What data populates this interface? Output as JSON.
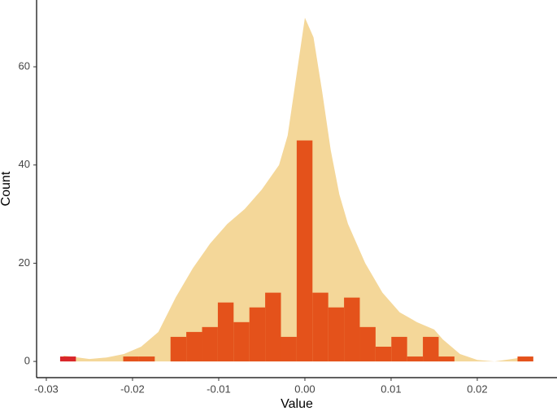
{
  "chart_data": {
    "type": "histogram",
    "x_label": "Value",
    "y_label": "Count",
    "bins": [
      -0.0284,
      -0.02657,
      -0.02474,
      -0.02291,
      -0.02108,
      -0.01925,
      -0.01742,
      -0.01559,
      -0.01376,
      -0.01193,
      -0.0101,
      -0.00827,
      -0.00644,
      -0.00461,
      -0.00278,
      -0.00095,
      0.00088,
      0.00271,
      0.00454,
      0.00637,
      0.0082,
      0.01003,
      0.01186,
      0.01369,
      0.01552,
      0.01735,
      0.01918,
      0.02101,
      0.02284,
      0.02467,
      0.0265
    ],
    "counts": [
      1,
      0,
      0,
      0,
      1,
      1,
      0,
      5,
      6,
      7,
      12,
      8,
      11,
      14,
      5,
      45,
      14,
      11,
      13,
      7,
      3,
      5,
      1,
      5,
      1,
      0,
      0,
      0,
      0,
      1
    ],
    "colors": [
      "#d9262a",
      "#e4521b",
      "#e4521b",
      "#e4521b",
      "#e4521b",
      "#e4521b",
      "#e4521b",
      "#e4521b",
      "#e4521b",
      "#e4521b",
      "#e4521b",
      "#e4521b",
      "#e4521b",
      "#e4521b",
      "#e4521b",
      "#e4521b",
      "#e4521b",
      "#e4521b",
      "#e4521b",
      "#e4521b",
      "#e4521b",
      "#e4521b",
      "#e4521b",
      "#e4521b",
      "#e4521b",
      "#e4521b",
      "#e4521b",
      "#e4521b",
      "#e4521b",
      "#e4521b"
    ],
    "density": {
      "color": "#f4d799",
      "x": [
        -0.028,
        -0.025,
        -0.023,
        -0.021,
        -0.019,
        -0.017,
        -0.015,
        -0.013,
        -0.011,
        -0.009,
        -0.007,
        -0.005,
        -0.003,
        -0.002,
        -0.001,
        0.0,
        0.001,
        0.002,
        0.003,
        0.004,
        0.005,
        0.007,
        0.009,
        0.011,
        0.013,
        0.015,
        0.016,
        0.018,
        0.02,
        0.022,
        0.024,
        0.026
      ],
      "y": [
        1.2,
        0.5,
        0.8,
        1.5,
        3,
        6,
        13,
        19,
        24,
        28,
        31,
        35,
        40,
        46,
        58,
        70,
        66,
        55,
        43,
        34,
        28,
        20,
        14,
        10,
        8,
        6.5,
        4.5,
        1.5,
        0.3,
        0,
        0.5,
        1
      ]
    },
    "xlim": [
      -0.03113,
      0.02925
    ],
    "ylim": [
      -3.3,
      73.6
    ],
    "xticks": [
      -0.03,
      -0.02,
      -0.01,
      {
        "value": 0,
        "label": "0.00"
      },
      0.01,
      0.02
    ],
    "yticks": [
      0,
      20,
      40,
      60
    ]
  }
}
